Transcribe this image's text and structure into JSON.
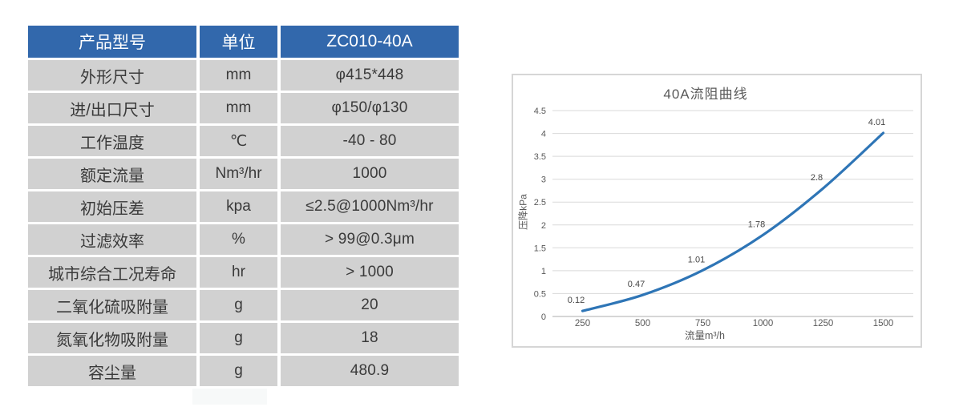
{
  "table": {
    "header_bg": "#3268AC",
    "row_bg": "#d1d1d1",
    "columns": [
      "产品型号",
      "单位",
      "ZC010-40A"
    ],
    "rows": [
      {
        "label": "外形尺寸",
        "unit": "mm",
        "value": "φ415*448"
      },
      {
        "label": "进/出口尺寸",
        "unit": "mm",
        "value": "φ150/φ130"
      },
      {
        "label": "工作温度",
        "unit": "℃",
        "value": "-40 - 80"
      },
      {
        "label": "额定流量",
        "unit": "Nm³/hr",
        "value": "1000"
      },
      {
        "label": "初始压差",
        "unit": "kpa",
        "value": "≤2.5@1000Nm³/hr"
      },
      {
        "label": "过滤效率",
        "unit": "%",
        "value": "> 99@0.3μm"
      },
      {
        "label": "城市综合工况寿命",
        "unit": "hr",
        "value": "> 1000"
      },
      {
        "label": "二氧化硫吸附量",
        "unit": "g",
        "value": "20"
      },
      {
        "label": "氮氧化物吸附量",
        "unit": "g",
        "value": "18"
      },
      {
        "label": "容尘量",
        "unit": "g",
        "value": "480.9"
      }
    ]
  },
  "chart_data": {
    "type": "line",
    "title": "40A流阻曲线",
    "xlabel": "流量m³/h",
    "ylabel": "压降kPa",
    "categories": [
      "250",
      "500",
      "750",
      "1000",
      "1250",
      "1500"
    ],
    "series": [
      {
        "name": "40A流阻曲线",
        "values": [
          0.12,
          0.47,
          1.01,
          1.78,
          2.8,
          4.01
        ],
        "labels": [
          "0.12",
          "0.47",
          "1.01",
          "1.78",
          "2.8",
          "4.01"
        ]
      }
    ],
    "yticks": [
      "0",
      "0.5",
      "1",
      "1.5",
      "2",
      "2.5",
      "3",
      "3.5",
      "4",
      "4.5"
    ],
    "ylim": [
      0,
      4.5
    ],
    "grid": "horizontal",
    "legend": "none",
    "smooth": true,
    "line_color": "#2E75B6",
    "gridline_color": "#d9d9d9",
    "axis_text_color": "#595959",
    "data_label_color": "#464646"
  }
}
